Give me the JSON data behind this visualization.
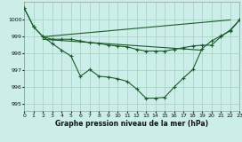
{
  "title": "Graphe pression niveau de la mer (hPa)",
  "bg_color": "#cceee8",
  "grid_color": "#aad4c8",
  "line_color": "#1a5c2a",
  "xlim": [
    0,
    23
  ],
  "ylim": [
    994.6,
    1001.1
  ],
  "yticks": [
    995,
    996,
    997,
    998,
    999,
    1000
  ],
  "xticks": [
    0,
    1,
    2,
    3,
    4,
    5,
    6,
    7,
    8,
    9,
    10,
    11,
    12,
    13,
    14,
    15,
    16,
    17,
    18,
    19,
    20,
    21,
    22,
    23
  ],
  "series": [
    {
      "x": [
        0,
        1,
        2,
        3,
        4,
        5,
        6,
        7,
        8,
        9,
        10,
        11,
        12,
        13,
        14,
        15,
        16,
        17,
        18,
        19,
        20,
        21,
        22,
        23
      ],
      "y": [
        1000.7,
        999.6,
        999.0,
        998.6,
        998.2,
        997.85,
        996.65,
        997.05,
        996.65,
        996.6,
        996.5,
        996.35,
        995.9,
        995.35,
        995.35,
        995.4,
        996.0,
        996.55,
        997.05,
        998.3,
        998.75,
        999.05,
        999.35,
        1000.0
      ],
      "markers": true
    },
    {
      "x": [
        0,
        1,
        2,
        3,
        4,
        5,
        6,
        7,
        8,
        9,
        10,
        11,
        12,
        13,
        14,
        15,
        16,
        17,
        18,
        19,
        20,
        21,
        22,
        23
      ],
      "y": [
        1000.7,
        999.6,
        999.0,
        998.85,
        998.85,
        998.85,
        998.75,
        998.65,
        998.6,
        998.5,
        998.45,
        998.4,
        998.25,
        998.15,
        998.15,
        998.15,
        998.25,
        998.35,
        998.45,
        998.5,
        998.5,
        999.0,
        999.4,
        1000.0
      ],
      "markers": true
    },
    {
      "x": [
        2,
        22
      ],
      "y": [
        999.0,
        1000.0
      ],
      "markers": false
    },
    {
      "x": [
        2,
        19
      ],
      "y": [
        998.85,
        998.2
      ],
      "markers": false
    }
  ]
}
